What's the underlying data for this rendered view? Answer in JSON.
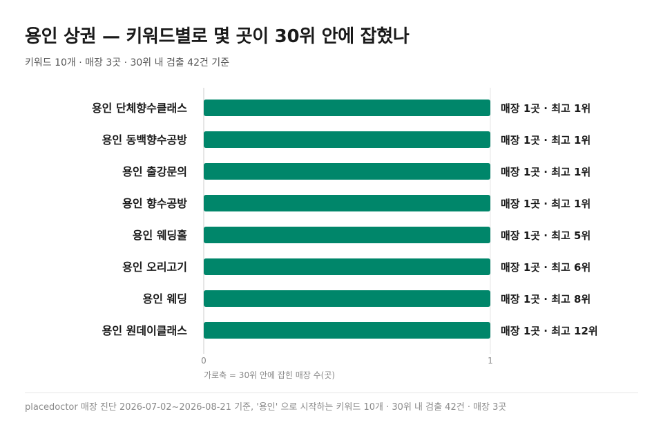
{
  "title": "용인 상권 — 키워드별로 몇 곳이 30위 안에 잡혔나",
  "subtitle": "키워드 10개 · 매장 3곳 · 30위 내 검출 42건 기준",
  "footer": "placedoctor 매장 진단 2026-07-02~2026-08-21 기준, '용인' 으로 시작하는 키워드 10개 · 30위 내 검출 42건 · 매장 3곳",
  "colors": {
    "bar": "#00866a",
    "axis": "#cccccc",
    "grid": "#e6e6e6"
  },
  "chart_data": {
    "type": "bar",
    "orientation": "horizontal",
    "categories": [
      "용인 단체향수클래스",
      "용인 동백향수공방",
      "용인 출강문의",
      "용인 향수공방",
      "용인 웨딩홀",
      "용인 오리고기",
      "용인 웨딩",
      "용인 원데이클래스"
    ],
    "values": [
      1,
      1,
      1,
      1,
      1,
      1,
      1,
      1
    ],
    "data_labels": [
      "매장 1곳 · 최고 1위",
      "매장 1곳 · 최고 1위",
      "매장 1곳 · 최고 1위",
      "매장 1곳 · 최고 1위",
      "매장 1곳 · 최고 5위",
      "매장 1곳 · 최고 6위",
      "매장 1곳 · 최고 8위",
      "매장 1곳 · 최고 12위"
    ],
    "xlim": [
      0,
      1
    ],
    "xticks": [
      "0",
      "1"
    ],
    "xlabel": "가로축 = 30위 안에 잡힌 매장 수(곳)",
    "grid": true
  }
}
